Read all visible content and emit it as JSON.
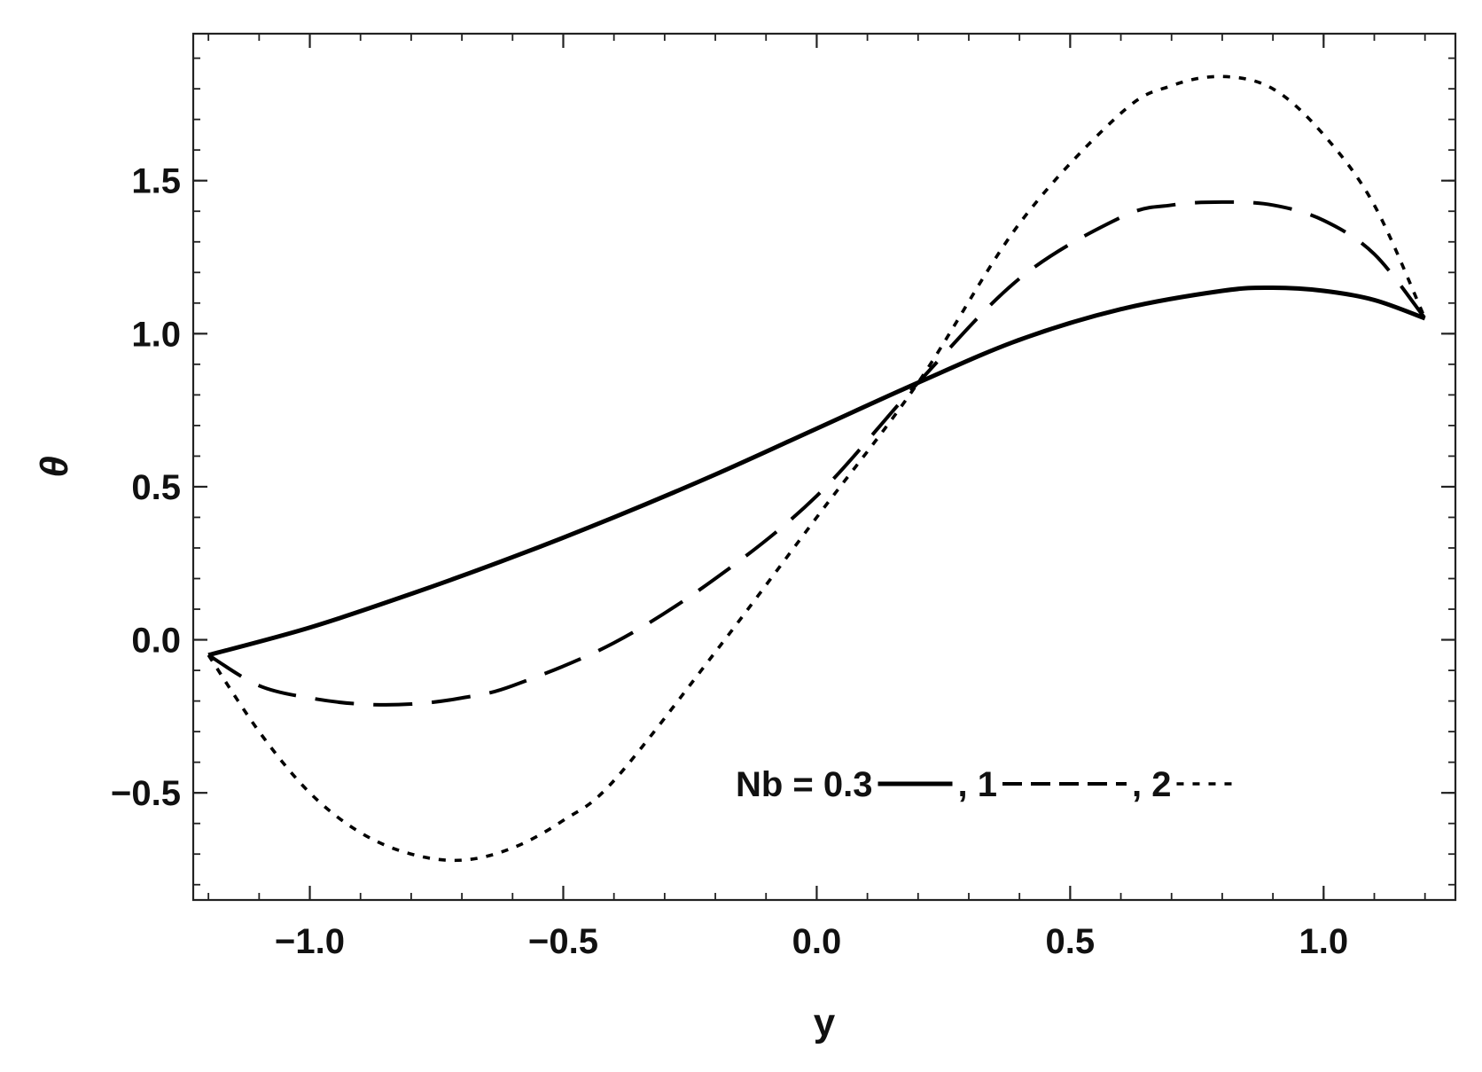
{
  "chart_data": {
    "type": "line",
    "title": "",
    "xlabel": "y",
    "ylabel": "θ",
    "xlim": [
      -1.23,
      1.26
    ],
    "ylim": [
      -0.85,
      1.98
    ],
    "grid": false,
    "frame": true,
    "xticks": [
      -1.0,
      -0.5,
      0.0,
      0.5,
      1.0
    ],
    "xtick_labels": [
      "−1.0",
      "−0.5",
      "0.0",
      "0.5",
      "1.0"
    ],
    "yticks": [
      -0.5,
      0.0,
      0.5,
      1.0,
      1.5
    ],
    "ytick_labels": [
      "−0.5",
      "0.0",
      "0.5",
      "1.0",
      "1.5"
    ],
    "legend": {
      "placement": "bottom-right inside plot",
      "prefix": "Nb = ",
      "entries": [
        "0.3",
        "1",
        "2"
      ]
    },
    "series": [
      {
        "name": "0.3",
        "style": "solid",
        "color": "#000000",
        "x": [
          -1.2,
          -1.0,
          -0.8,
          -0.6,
          -0.4,
          -0.2,
          0.0,
          0.2,
          0.4,
          0.6,
          0.8,
          0.9,
          1.0,
          1.1,
          1.2
        ],
        "y": [
          -0.05,
          0.04,
          0.15,
          0.27,
          0.4,
          0.54,
          0.69,
          0.84,
          0.98,
          1.08,
          1.14,
          1.15,
          1.14,
          1.11,
          1.05
        ]
      },
      {
        "name": "1",
        "style": "dashed",
        "color": "#000000",
        "x": [
          -1.2,
          -1.1,
          -1.0,
          -0.9,
          -0.8,
          -0.7,
          -0.6,
          -0.4,
          -0.2,
          0.0,
          0.2,
          0.4,
          0.6,
          0.7,
          0.8,
          0.9,
          1.0,
          1.1,
          1.2
        ],
        "y": [
          -0.05,
          -0.15,
          -0.19,
          -0.21,
          -0.21,
          -0.19,
          -0.15,
          -0.01,
          0.2,
          0.47,
          0.84,
          1.18,
          1.38,
          1.42,
          1.43,
          1.42,
          1.37,
          1.26,
          1.05
        ]
      },
      {
        "name": "2",
        "style": "dotted",
        "color": "#000000",
        "x": [
          -1.2,
          -1.1,
          -1.0,
          -0.9,
          -0.8,
          -0.7,
          -0.6,
          -0.5,
          -0.4,
          -0.2,
          0.0,
          0.2,
          0.4,
          0.6,
          0.7,
          0.8,
          0.9,
          1.0,
          1.1,
          1.2
        ],
        "y": [
          -0.05,
          -0.3,
          -0.5,
          -0.63,
          -0.7,
          -0.72,
          -0.68,
          -0.59,
          -0.46,
          -0.04,
          0.4,
          0.84,
          1.36,
          1.72,
          1.81,
          1.84,
          1.8,
          1.65,
          1.42,
          1.05
        ]
      }
    ]
  }
}
